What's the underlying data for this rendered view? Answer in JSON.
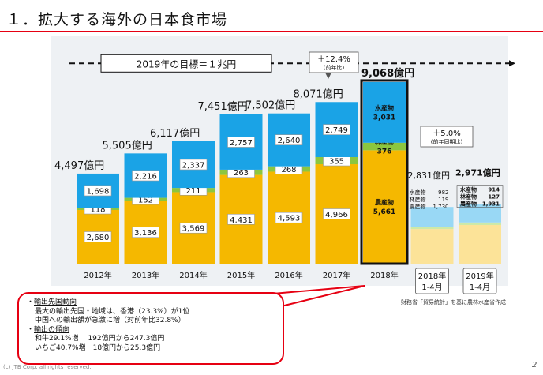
{
  "title": "１．拡大する海外の日本食市場",
  "target_label": "2019年の目標＝１兆円",
  "growth_2018": {
    "pct": "＋12.4%",
    "note": "(前年比)"
  },
  "growth_2019": {
    "pct": "＋5.0%",
    "note": "(前年同期比)"
  },
  "source": "財務省「貿易統計」を基に農林水産省作成",
  "copyright": "(c) JTB Corp. all rights reserved.",
  "page": "2",
  "callout": {
    "h1": "輸出先国動向",
    "l1": "最大の輸出先国・地域は、香港（23.3%）が1位",
    "l2": "中国への輸出額が急激に増（対前年比32.8%）",
    "h2": "輸出の傾向",
    "l3": "和牛29.1%増　 192億円から247.3億円",
    "l4": "いちご40.7%増　18億円から25.3億円"
  },
  "chart_data": {
    "type": "bar",
    "stacked": true,
    "categories": [
      "2012年",
      "2013年",
      "2014年",
      "2015年",
      "2016年",
      "2017年",
      "2018年",
      "2018年 1-4月",
      "2019年 1-4月"
    ],
    "totals": [
      "4,497億円",
      "5,505億円",
      "6,117億円",
      "7,451億円",
      "7,502億円",
      "8,071億円",
      "9,068億円",
      "2,831億円",
      "2,971億円"
    ],
    "series": [
      {
        "name": "農産物",
        "values": [
          2680,
          3136,
          3569,
          4431,
          4593,
          4966,
          5661,
          1730,
          1931
        ],
        "labels": [
          "2,680",
          "3,136",
          "3,569",
          "4,431",
          "4,593",
          "4,966",
          "5,661",
          "1,730",
          "1,931"
        ]
      },
      {
        "name": "林産物",
        "values": [
          118,
          152,
          211,
          263,
          268,
          355,
          376,
          119,
          127
        ],
        "labels": [
          "118",
          "152",
          "211",
          "263",
          "268",
          "355",
          "376",
          "119",
          "127"
        ]
      },
      {
        "name": "水産物",
        "values": [
          1698,
          2216,
          2337,
          2757,
          2640,
          2749,
          3031,
          982,
          914
        ],
        "labels": [
          "1,698",
          "2,216",
          "2,337",
          "2,757",
          "2,640",
          "2,749",
          "3,031",
          "982",
          "914"
        ]
      }
    ],
    "colors": {
      "agri": "#f5b800",
      "forest": "#8cc63f",
      "fish": "#1aa3e6",
      "agri_light": "#fce398",
      "forest_light": "#cde9a8",
      "fish_light": "#99d8f5",
      "highlight": "#111111",
      "accent": "#e60012"
    },
    "target": 10000,
    "ylim": [
      0,
      10800
    ]
  }
}
